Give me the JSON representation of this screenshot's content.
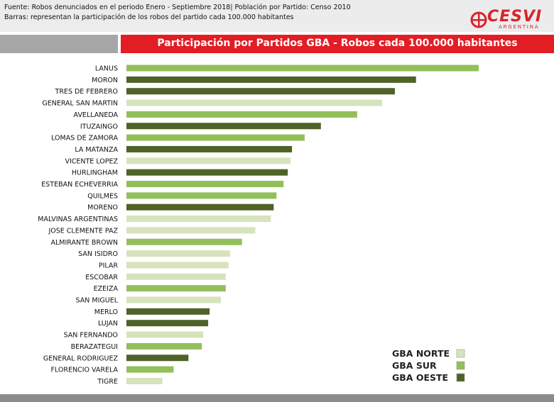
{
  "header": {
    "source_line1": "Fuente: Robos denunciados en el periodo Enero - Septiembre 2018| Población por Partido: Censo 2010",
    "source_line2": "Barras: representan la participación de los robos del partido cada 100.000 habitantes",
    "logo_text": "CESVI",
    "logo_sub": "ARGENTINA"
  },
  "colors": {
    "GBA NORTE": "#d6e3bc",
    "GBA SUR": "#93bf5b",
    "GBA OESTE": "#4f6228",
    "title_bg": "#e31d24"
  },
  "chart_data": {
    "type": "bar",
    "orientation": "horizontal",
    "title": "Participación por Partidos GBA - Robos cada 100.000 habitantes",
    "xlabel": "",
    "ylabel": "",
    "grid": false,
    "legend_position": "bottom-right",
    "legend": [
      "GBA NORTE",
      "GBA SUR",
      "GBA OESTE"
    ],
    "categories": [
      "LANUS",
      "MORON",
      "TRES DE FEBRERO",
      "GENERAL SAN MARTIN",
      "AVELLANEDA",
      "ITUZAINGO",
      "LOMAS DE ZAMORA",
      "LA MATANZA",
      "VICENTE LOPEZ",
      "HURLINGHAM",
      "ESTEBAN ECHEVERRIA",
      "QUILMES",
      "MORENO",
      "MALVINAS ARGENTINAS",
      "JOSE CLEMENTE PAZ",
      "ALMIRANTE BROWN",
      "SAN ISIDRO",
      "PILAR",
      "ESCOBAR",
      "EZEIZA",
      "SAN MIGUEL",
      "MERLO",
      "LUJAN",
      "SAN FERNANDO",
      "BERAZATEGUI",
      "GENERAL RODRIGUEZ",
      "FLORENCIO VARELA",
      "TIGRE"
    ],
    "values": [
      100,
      82.2,
      76.2,
      72.6,
      65.5,
      55.2,
      50.6,
      47.0,
      46.6,
      45.8,
      44.6,
      42.6,
      41.8,
      41.0,
      36.6,
      32.8,
      29.4,
      29.0,
      28.2,
      28.2,
      26.8,
      23.6,
      23.2,
      21.8,
      21.4,
      17.6,
      13.4,
      10.2
    ],
    "groups": [
      "GBA SUR",
      "GBA OESTE",
      "GBA OESTE",
      "GBA NORTE",
      "GBA SUR",
      "GBA OESTE",
      "GBA SUR",
      "GBA OESTE",
      "GBA NORTE",
      "GBA OESTE",
      "GBA SUR",
      "GBA SUR",
      "GBA OESTE",
      "GBA NORTE",
      "GBA NORTE",
      "GBA SUR",
      "GBA NORTE",
      "GBA NORTE",
      "GBA NORTE",
      "GBA SUR",
      "GBA NORTE",
      "GBA OESTE",
      "GBA OESTE",
      "GBA NORTE",
      "GBA SUR",
      "GBA OESTE",
      "GBA SUR",
      "GBA NORTE"
    ],
    "xlim": [
      0,
      100
    ]
  }
}
